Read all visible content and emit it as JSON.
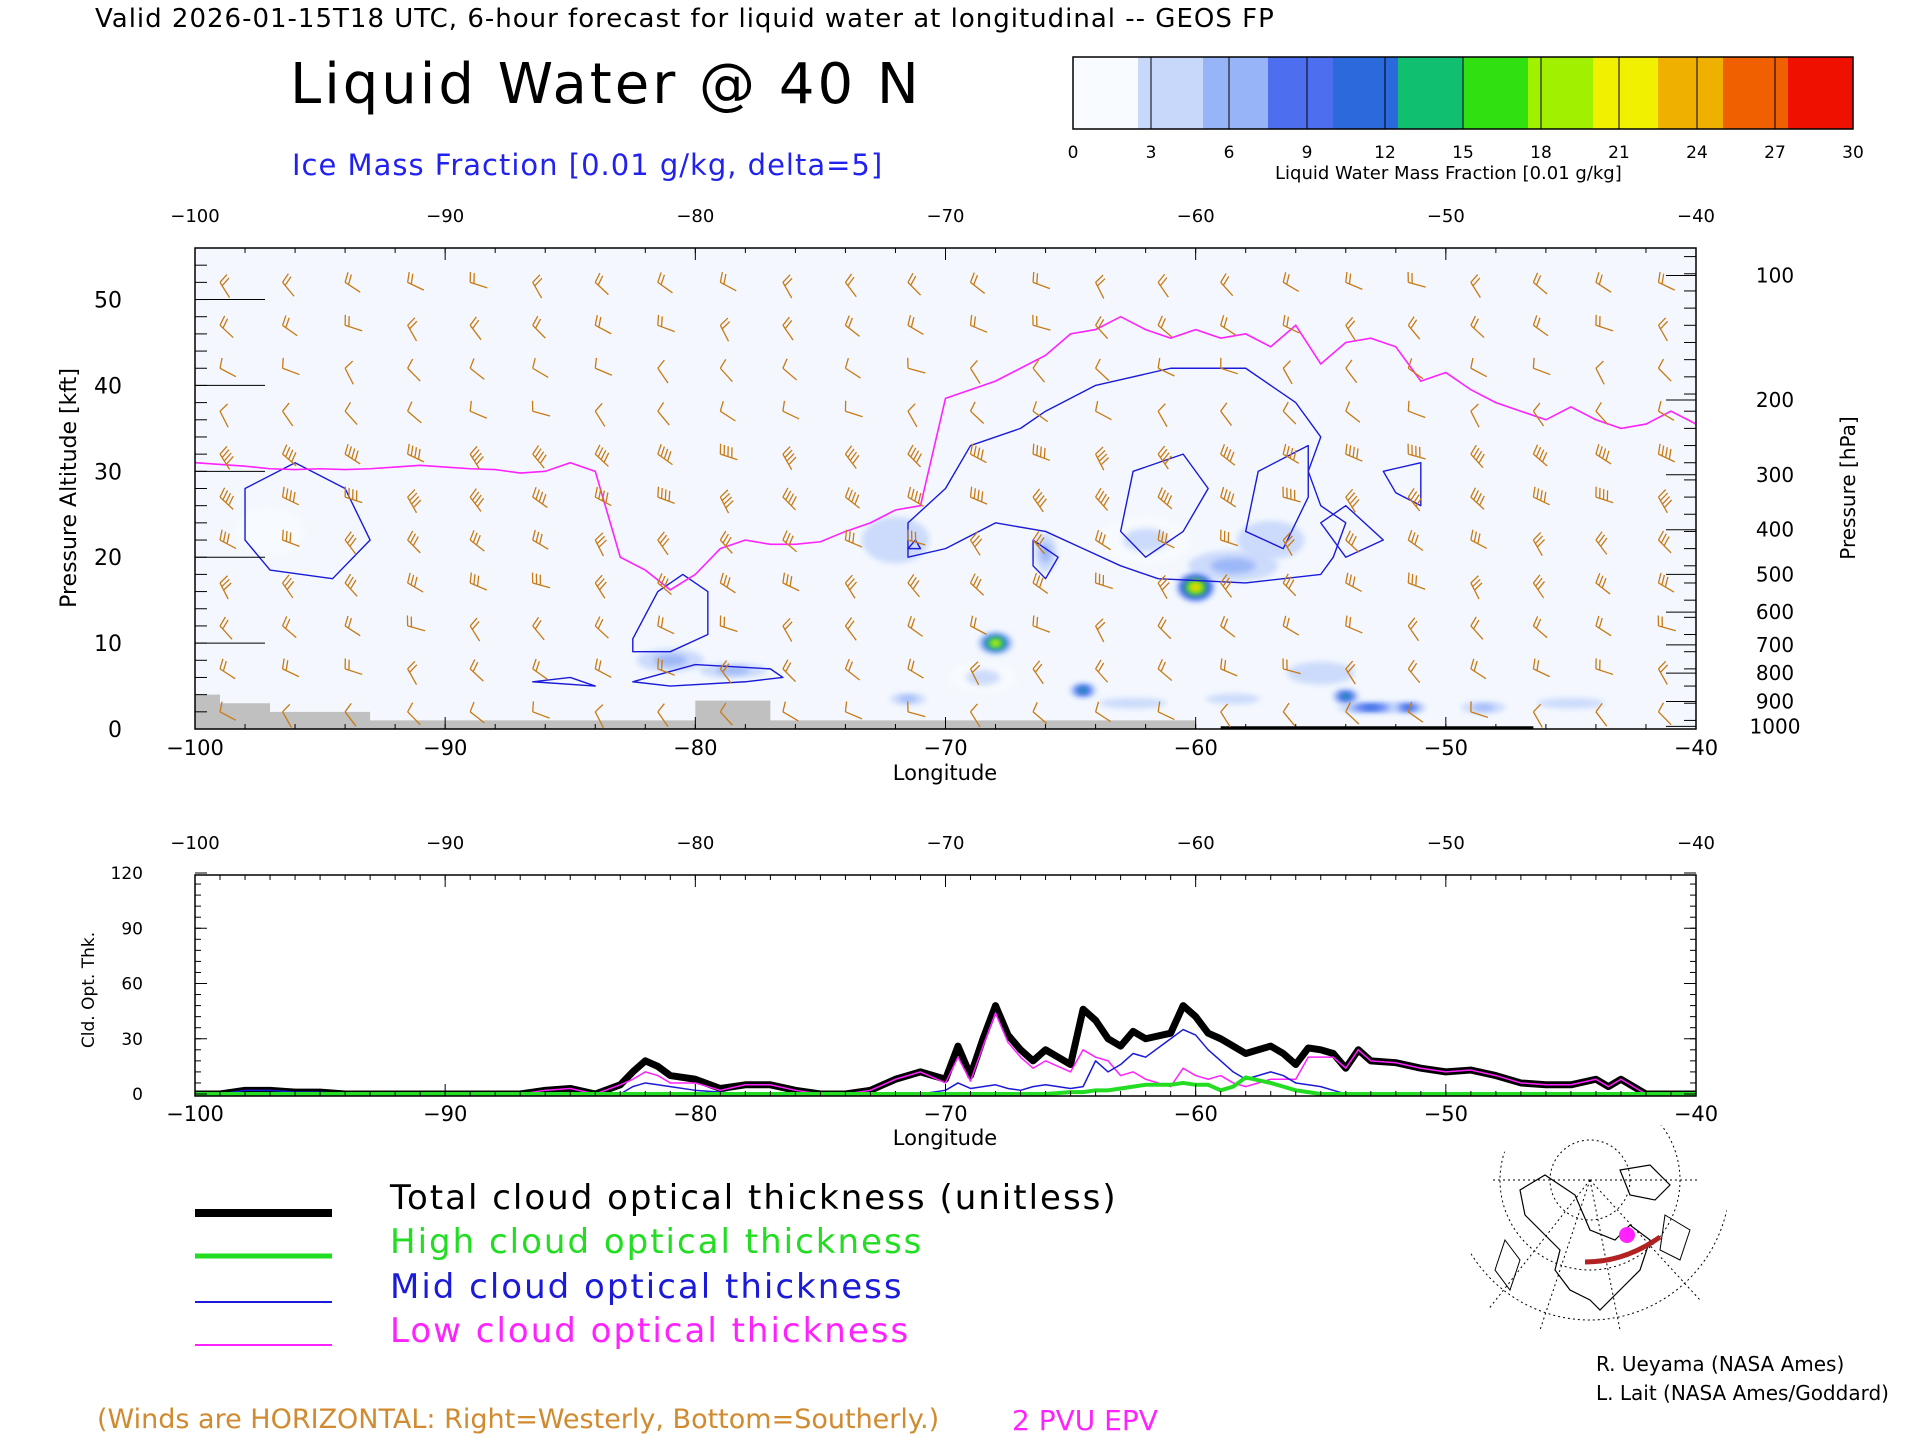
{
  "header": {
    "valid_line": "Valid 2026-01-15T18 UTC, 6-hour forecast for liquid water at longitudinal -- GEOS FP",
    "title": "Liquid Water @ 40 N",
    "ice_label": "Ice Mass Fraction [0.01 g/kg, delta=5]"
  },
  "colorbar": {
    "ticks": [
      "0",
      "3",
      "6",
      "9",
      "12",
      "15",
      "18",
      "21",
      "24",
      "27",
      "30"
    ],
    "label": "Liquid Water Mass Fraction [0.01 g/kg]",
    "colors": [
      "#f8fbff",
      "#c8d8fb",
      "#98b4f8",
      "#4e6ef0",
      "#2a6adc",
      "#10c070",
      "#30e010",
      "#a0f000",
      "#f0f000",
      "#f0b000",
      "#f06000",
      "#f01000"
    ]
  },
  "colors": {
    "wind_barbs": "#c87a14",
    "epv_line": "#ff22ff",
    "ice_contours": "#1a1ad8",
    "total_line": "#000000",
    "high_line": "#22dd22",
    "mid_line": "#1a1ad8",
    "low_line": "#ff22ff",
    "terrain": "#c0c0c0"
  },
  "chart_data": [
    {
      "type": "heatmap",
      "name": "cross-section",
      "xlabel": "Longitude",
      "ylabel": "Pressure Altitude [kft]",
      "ylabel_right": "Pressure [hPa]",
      "xlim": [
        -100,
        -40
      ],
      "ylim": [
        0,
        56
      ],
      "x_ticks": [
        "−100",
        "−90",
        "−80",
        "−70",
        "−60",
        "−50",
        "−40"
      ],
      "x_tick_values": [
        -100,
        -90,
        -80,
        -70,
        -60,
        -50,
        -40
      ],
      "y_ticks": [
        "0",
        "10",
        "20",
        "30",
        "40",
        "50"
      ],
      "y_tick_values": [
        0,
        10,
        20,
        30,
        40,
        50
      ],
      "pressure_ticks": [
        "100",
        "200",
        "300",
        "400",
        "500",
        "600",
        "700",
        "800",
        "900",
        "1000"
      ],
      "pressure_tick_kft": [
        52.8,
        38.3,
        29.6,
        23.2,
        18.0,
        13.6,
        9.8,
        6.5,
        3.2,
        0.3
      ],
      "liquid_water_blobs": [
        {
          "lon": -60.0,
          "kft": 16.5,
          "value": 24,
          "dlon": 0.9,
          "dkft": 2.0
        },
        {
          "lon": -68.0,
          "kft": 10.0,
          "value": 22,
          "dlon": 0.8,
          "dkft": 1.5
        },
        {
          "lon": -64.5,
          "kft": 4.5,
          "value": 13,
          "dlon": 0.6,
          "dkft": 1.0
        },
        {
          "lon": -54.0,
          "kft": 3.8,
          "value": 13,
          "dlon": 0.6,
          "dkft": 1.0
        },
        {
          "lon": -51.5,
          "kft": 2.5,
          "value": 12,
          "dlon": 0.8,
          "dkft": 0.8
        },
        {
          "lon": -53.0,
          "kft": 2.5,
          "value": 10,
          "dlon": 1.5,
          "dkft": 0.8
        },
        {
          "lon": -71.5,
          "kft": 3.5,
          "value": 6,
          "dlon": 0.8,
          "dkft": 0.8
        },
        {
          "lon": -48.5,
          "kft": 2.5,
          "value": 5,
          "dlon": 1.0,
          "dkft": 0.8
        },
        {
          "lon": -66.0,
          "kft": 20.5,
          "value": 5,
          "dlon": 0.5,
          "dkft": 2.5
        },
        {
          "lon": -58.5,
          "kft": 19.0,
          "value": 5,
          "dlon": 2.0,
          "dkft": 2.0
        },
        {
          "lon": -62.0,
          "kft": 22.0,
          "value": 4,
          "dlon": 2.0,
          "dkft": 3.0
        },
        {
          "lon": -78.5,
          "kft": 6.8,
          "value": 6,
          "dlon": 1.5,
          "dkft": 1.0
        },
        {
          "lon": -81.0,
          "kft": 8.0,
          "value": 5,
          "dlon": 1.5,
          "dkft": 1.5
        },
        {
          "lon": -68.5,
          "kft": 6.0,
          "value": 4,
          "dlon": 1.5,
          "dkft": 2.0
        },
        {
          "lon": -55.0,
          "kft": 6.5,
          "value": 3,
          "dlon": 1.5,
          "dkft": 1.5
        },
        {
          "lon": -57.0,
          "kft": 22.0,
          "value": 3,
          "dlon": 1.5,
          "dkft": 2.5
        },
        {
          "lon": -72.0,
          "kft": 22.0,
          "value": 3,
          "dlon": 1.5,
          "dkft": 3.0
        },
        {
          "lon": -97.0,
          "kft": 23.0,
          "value": 2,
          "dlon": 1.5,
          "dkft": 3.0
        },
        {
          "lon": -45.0,
          "kft": 3.0,
          "value": 3,
          "dlon": 1.5,
          "dkft": 0.7
        },
        {
          "lon": -62.5,
          "kft": 3.0,
          "value": 3,
          "dlon": 1.5,
          "dkft": 0.7
        },
        {
          "lon": -58.5,
          "kft": 3.5,
          "value": 3,
          "dlon": 1.2,
          "dkft": 0.7
        }
      ],
      "ice_contours": [
        [
          [
            -98,
            28
          ],
          [
            -96,
            31
          ],
          [
            -94,
            28
          ],
          [
            -93,
            22
          ],
          [
            -94.5,
            17.5
          ],
          [
            -97,
            18.5
          ],
          [
            -98,
            22
          ]
        ],
        [
          [
            -82.5,
            10.5
          ],
          [
            -81.5,
            16
          ],
          [
            -80.5,
            18
          ],
          [
            -79.5,
            16
          ],
          [
            -79.5,
            11
          ],
          [
            -81,
            9
          ],
          [
            -82.5,
            9
          ]
        ],
        [
          [
            -82.5,
            5.5
          ],
          [
            -80,
            7.5
          ],
          [
            -77,
            7
          ],
          [
            -76.5,
            6
          ],
          [
            -78,
            5.5
          ],
          [
            -81,
            5
          ]
        ],
        [
          [
            -86.5,
            5.5
          ],
          [
            -85,
            6
          ],
          [
            -84,
            5
          ]
        ],
        [
          [
            -71.5,
            24
          ],
          [
            -70,
            28
          ],
          [
            -69,
            33
          ],
          [
            -67,
            35
          ],
          [
            -66,
            37
          ],
          [
            -64,
            40
          ],
          [
            -61,
            42
          ],
          [
            -58,
            42
          ],
          [
            -56,
            38
          ],
          [
            -55,
            34
          ],
          [
            -55.5,
            30
          ],
          [
            -55,
            26
          ],
          [
            -54,
            24
          ],
          [
            -54.5,
            20
          ],
          [
            -55,
            18
          ],
          [
            -58,
            17
          ],
          [
            -61.5,
            17.5
          ],
          [
            -63,
            19
          ],
          [
            -64.5,
            21
          ],
          [
            -66,
            23
          ],
          [
            -68,
            24
          ],
          [
            -70,
            21
          ],
          [
            -71.5,
            20
          ]
        ],
        [
          [
            -62.5,
            30
          ],
          [
            -60.5,
            32
          ],
          [
            -59.5,
            28
          ],
          [
            -60.5,
            23
          ],
          [
            -62,
            20
          ],
          [
            -63,
            23
          ]
        ],
        [
          [
            -57.5,
            30
          ],
          [
            -55.5,
            33
          ],
          [
            -55.5,
            27
          ],
          [
            -56.5,
            21
          ],
          [
            -58,
            23
          ]
        ],
        [
          [
            -66.5,
            22
          ],
          [
            -65.5,
            20
          ],
          [
            -66,
            17.5
          ],
          [
            -66.5,
            19
          ]
        ],
        [
          [
            -71.5,
            21
          ],
          [
            -71.2,
            22
          ],
          [
            -71,
            21
          ]
        ],
        [
          [
            -52.5,
            30
          ],
          [
            -52,
            27.5
          ],
          [
            -51,
            26
          ],
          [
            -51,
            31
          ]
        ],
        [
          [
            -55,
            24
          ],
          [
            -54,
            26
          ],
          [
            -52.5,
            22
          ],
          [
            -54,
            20
          ]
        ]
      ],
      "epv_line": {
        "x": [
          -100,
          -99,
          -98,
          -97,
          -96,
          -95,
          -94,
          -93,
          -92,
          -91,
          -90,
          -89,
          -88,
          -87,
          -86,
          -85,
          -84,
          -83.5,
          -83,
          -82,
          -81,
          -80,
          -79,
          -78,
          -77,
          -76,
          -75,
          -74,
          -73,
          -72,
          -71,
          -70,
          -69,
          -68,
          -67,
          -66,
          -65,
          -64,
          -63,
          -62,
          -61,
          -60,
          -59,
          -58,
          -57,
          -56,
          -55,
          -54,
          -53,
          -52,
          -51,
          -50,
          -49,
          -48,
          -47,
          -46,
          -45,
          -44,
          -43,
          -42,
          -41,
          -40
        ],
        "y": [
          31,
          30.8,
          30.6,
          30.3,
          30.2,
          30.3,
          30.2,
          30.3,
          30.5,
          30.7,
          30.5,
          30.3,
          30.2,
          29.8,
          30,
          31,
          30,
          25,
          20,
          18.5,
          16.2,
          18,
          21,
          22,
          21.5,
          21.5,
          21.8,
          23,
          24,
          25.5,
          26,
          38.5,
          39.5,
          40.5,
          42,
          43.5,
          46,
          46.5,
          48,
          46.5,
          45.5,
          46.5,
          45.5,
          46,
          44.5,
          47,
          42.5,
          45,
          45.5,
          44.5,
          40.5,
          41.5,
          39.5,
          38,
          37,
          36,
          37.5,
          36,
          35,
          35.5,
          37,
          35.5
        ]
      }
    },
    {
      "type": "line",
      "name": "cloud-optical-thickness",
      "xlabel": "Longitude",
      "ylabel": "Cld. Opt. Thk.",
      "xlim": [
        -100,
        -40
      ],
      "ylim": [
        0,
        120
      ],
      "x_ticks": [
        "−100",
        "−90",
        "−80",
        "−70",
        "−60",
        "−50",
        "−40"
      ],
      "x_tick_values": [
        -100,
        -90,
        -80,
        -70,
        -60,
        -50,
        -40
      ],
      "y_ticks": [
        "0",
        "30",
        "60",
        "90",
        "120"
      ],
      "y_tick_values": [
        0,
        30,
        60,
        90,
        120
      ],
      "x": [
        -100,
        -99,
        -98,
        -97,
        -96,
        -95,
        -94,
        -93,
        -92,
        -91,
        -90,
        -89,
        -88,
        -87,
        -86,
        -85,
        -84,
        -83,
        -82.5,
        -82,
        -81.5,
        -81,
        -80,
        -79,
        -78,
        -77,
        -76,
        -75,
        -74,
        -73,
        -72,
        -71,
        -70,
        -69.5,
        -69,
        -68.5,
        -68,
        -67.5,
        -67,
        -66.5,
        -66,
        -65,
        -64.5,
        -64,
        -63.5,
        -63,
        -62.5,
        -62,
        -61,
        -60.5,
        -60,
        -59.5,
        -59,
        -58.5,
        -58,
        -57,
        -56.5,
        -56,
        -55.5,
        -55,
        -54.5,
        -54,
        -53.5,
        -53,
        -52,
        -51,
        -50,
        -49,
        -48,
        -47,
        -46,
        -45,
        -44,
        -43.5,
        -43,
        -42,
        -41,
        -40
      ],
      "series": [
        {
          "name": "Total cloud optical thickness (unitless)",
          "values": [
            0,
            0,
            2,
            2,
            1,
            1,
            0,
            0,
            0,
            0,
            0,
            0,
            0,
            0,
            2,
            3,
            0,
            5,
            12,
            18,
            15,
            10,
            8,
            3,
            5,
            5,
            2,
            0,
            0,
            2,
            8,
            12,
            8,
            26,
            10,
            30,
            48,
            32,
            24,
            18,
            24,
            16,
            46,
            40,
            30,
            26,
            34,
            30,
            33,
            48,
            42,
            33,
            30,
            26,
            22,
            26,
            22,
            16,
            25,
            24,
            22,
            14,
            24,
            18,
            17,
            14,
            12,
            13,
            10,
            6,
            5,
            5,
            8,
            4,
            8,
            0,
            0,
            0
          ]
        },
        {
          "name": "High cloud optical thickness",
          "values": [
            0,
            0,
            0,
            0,
            0,
            0,
            0,
            0,
            0,
            0,
            0,
            0,
            0,
            0,
            0,
            0,
            0,
            0,
            0,
            0,
            0,
            0,
            0,
            0,
            0,
            0,
            0,
            0,
            0,
            0,
            0,
            0,
            0,
            0,
            0,
            0,
            0,
            0,
            0,
            0,
            0,
            1,
            1,
            2,
            2,
            3,
            4,
            5,
            5,
            6,
            5,
            5,
            2,
            4,
            9,
            6,
            4,
            2,
            1,
            0,
            0,
            0,
            0,
            0,
            0,
            0,
            0,
            0,
            0,
            0,
            0,
            0,
            0,
            0,
            0,
            0,
            0,
            0
          ]
        },
        {
          "name": "Mid cloud optical thickness",
          "values": [
            0,
            0,
            2,
            2,
            1,
            1,
            0,
            0,
            0,
            0,
            0,
            0,
            0,
            0,
            0,
            0,
            0,
            0,
            4,
            6,
            5,
            4,
            2,
            1,
            0,
            0,
            0,
            0,
            0,
            0,
            0,
            0,
            2,
            6,
            3,
            4,
            5,
            3,
            2,
            4,
            5,
            3,
            4,
            18,
            12,
            16,
            22,
            20,
            30,
            35,
            32,
            24,
            18,
            12,
            8,
            12,
            10,
            6,
            5,
            4,
            2,
            0,
            0,
            0,
            0,
            0,
            0,
            0,
            0,
            0,
            0,
            0,
            0,
            0,
            0,
            0,
            0,
            0
          ]
        },
        {
          "name": "Low cloud optical thickness",
          "values": [
            0,
            0,
            0,
            0,
            0,
            0,
            0,
            0,
            0,
            0,
            0,
            0,
            0,
            0,
            2,
            3,
            0,
            5,
            8,
            12,
            10,
            6,
            6,
            2,
            5,
            5,
            2,
            0,
            0,
            2,
            8,
            12,
            6,
            20,
            7,
            26,
            44,
            28,
            20,
            14,
            18,
            12,
            24,
            20,
            18,
            10,
            12,
            8,
            4,
            14,
            10,
            8,
            10,
            6,
            4,
            8,
            8,
            8,
            20,
            20,
            20,
            14,
            24,
            18,
            17,
            14,
            12,
            13,
            10,
            6,
            5,
            5,
            8,
            4,
            8,
            0,
            0,
            0
          ]
        }
      ]
    }
  ],
  "legend": {
    "total": "Total cloud optical thickness (unitless)",
    "high": "High cloud optical thickness",
    "mid": "Mid cloud optical thickness",
    "low": "Low cloud optical thickness"
  },
  "footer": {
    "winds_note": "(Winds are HORIZONTAL: Right=Westerly, Bottom=Southerly.)",
    "epv_label": "2 PVU EPV",
    "credit_1": "R. Ueyama (NASA Ames)",
    "credit_2": "L. Lait (NASA Ames/Goddard)"
  },
  "map_inset": {
    "icon": "polar-globe-map-icon",
    "marker_color": "#ff22ff",
    "track_color": "#b22222"
  }
}
